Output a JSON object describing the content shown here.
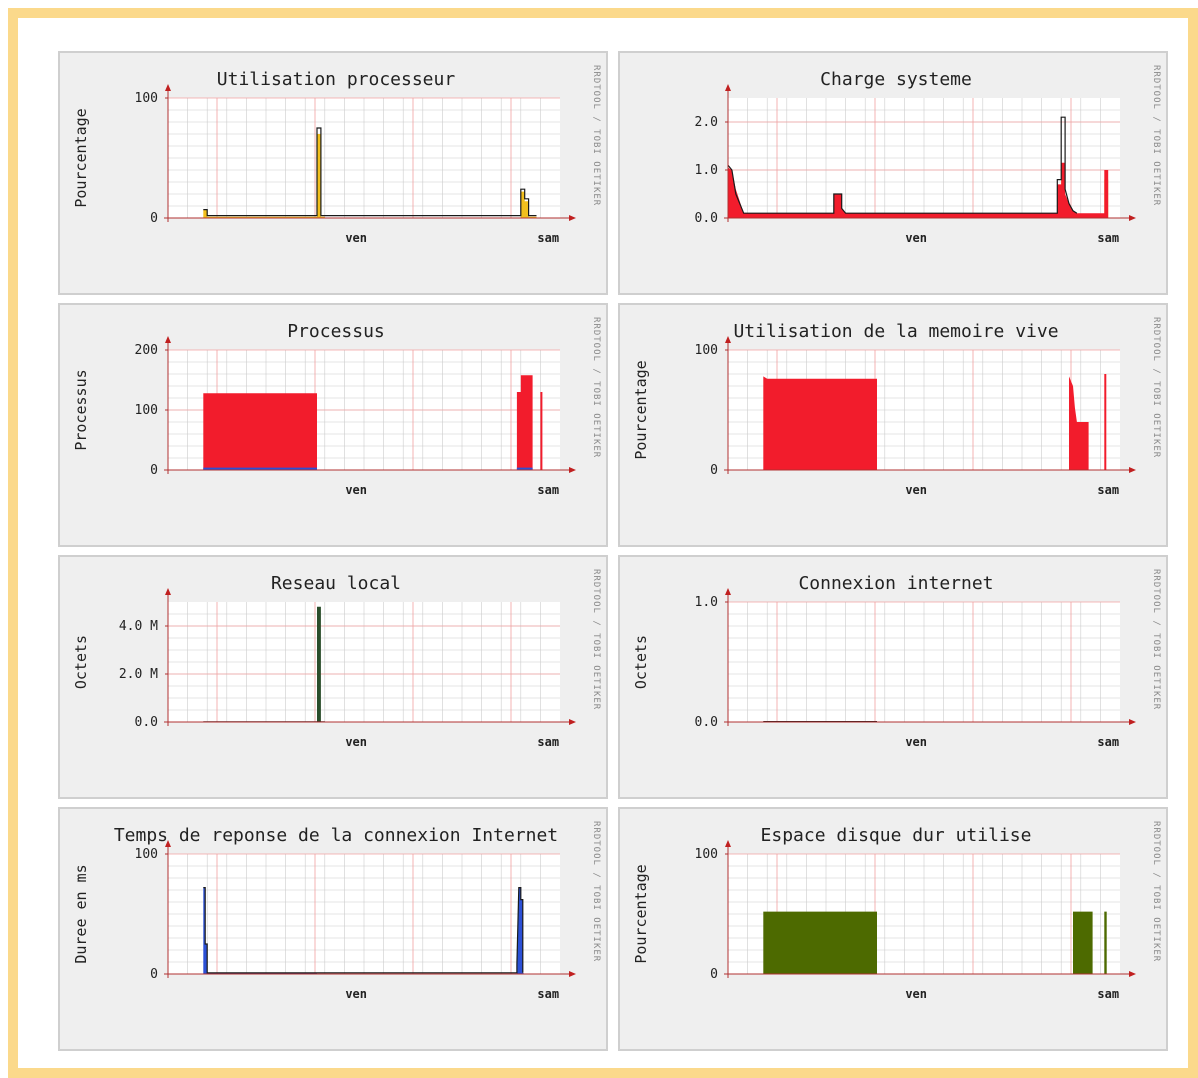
{
  "colors": {
    "background": "#efefef",
    "canvas": "#ffffff",
    "grid": "#cccccc",
    "major_grid": "#f1a0a0",
    "axis": "#b03030",
    "arrow": "#c02020",
    "red": "#f21c2c",
    "yellow": "#f2bf1c",
    "dark_line": "#1a1a1a",
    "blue": "#2c50d6",
    "green": "#4d6a00",
    "dark_green": "#2b4d2b",
    "border": "#fbd98b"
  },
  "watermark": "RRDTOOL / TOBI OETIKER",
  "x_labels": [
    "ven",
    "sam"
  ],
  "chart_data": [
    {
      "id": "cpu",
      "type": "area",
      "title": "Utilisation processeur",
      "ylabel": "Pourcentage",
      "ylim": [
        0,
        100
      ],
      "yticks": [
        0,
        100
      ],
      "ytick_labels": [
        "0",
        "100"
      ],
      "xlim": [
        0,
        100
      ],
      "xticks": [
        {
          "x": 48,
          "label": "ven"
        },
        {
          "x": 97,
          "label": "sam"
        }
      ],
      "series": [
        {
          "color": "yellow",
          "style": "area",
          "points": [
            [
              9,
              0
            ],
            [
              9,
              7
            ],
            [
              10,
              7
            ],
            [
              10,
              1
            ],
            [
              38,
              1
            ],
            [
              38,
              70
            ],
            [
              39,
              70
            ],
            [
              39,
              1
            ],
            [
              40,
              1
            ],
            [
              40,
              0
            ],
            [
              90,
              0
            ],
            [
              90,
              22
            ],
            [
              91,
              22
            ],
            [
              91,
              14
            ],
            [
              92,
              14
            ],
            [
              92,
              1
            ],
            [
              94,
              1
            ],
            [
              94,
              0
            ]
          ]
        },
        {
          "color": "dark_line",
          "style": "line",
          "points": [
            [
              9,
              7
            ],
            [
              10,
              7
            ],
            [
              10,
              2
            ],
            [
              38,
              2
            ],
            [
              38,
              75
            ],
            [
              39,
              75
            ],
            [
              39,
              2
            ],
            [
              40,
              2
            ],
            [
              90,
              2
            ],
            [
              90,
              24
            ],
            [
              91,
              24
            ],
            [
              91,
              16
            ],
            [
              92,
              16
            ],
            [
              92,
              2
            ],
            [
              94,
              2
            ]
          ]
        }
      ]
    },
    {
      "id": "load",
      "type": "area",
      "title": "Charge systeme",
      "ylabel": "",
      "ylim": [
        0,
        2.5
      ],
      "yticks": [
        0,
        1,
        2
      ],
      "ytick_labels": [
        "0.0",
        "1.0",
        "2.0"
      ],
      "xlim": [
        0,
        100
      ],
      "xticks": [
        {
          "x": 48,
          "label": "ven"
        },
        {
          "x": 97,
          "label": "sam"
        }
      ],
      "series": [
        {
          "color": "yellow",
          "style": "area",
          "points": [
            [
              0,
              0
            ],
            [
              0,
              0.9
            ],
            [
              1,
              0.9
            ],
            [
              1,
              0.5
            ],
            [
              2,
              0.3
            ],
            [
              4,
              0.05
            ],
            [
              27,
              0.05
            ],
            [
              27,
              0.4
            ],
            [
              29,
              0.4
            ],
            [
              29,
              0.1
            ],
            [
              30,
              0.05
            ],
            [
              30,
              0
            ],
            [
              84,
              0
            ],
            [
              84,
              0.4
            ],
            [
              85,
              0.4
            ],
            [
              85,
              1.0
            ],
            [
              86,
              1.0
            ],
            [
              86,
              0.4
            ],
            [
              87,
              0.2
            ],
            [
              88,
              0.1
            ],
            [
              89,
              0
            ],
            [
              96,
              0
            ],
            [
              96,
              0.8
            ],
            [
              97,
              0.8
            ],
            [
              97,
              0
            ]
          ]
        },
        {
          "color": "red",
          "style": "area",
          "points": [
            [
              0,
              0.9
            ],
            [
              0,
              1.05
            ],
            [
              1,
              1.0
            ],
            [
              2,
              0.6
            ],
            [
              4,
              0.1
            ],
            [
              27,
              0.1
            ],
            [
              27,
              0.5
            ],
            [
              29,
              0.5
            ],
            [
              29,
              0.2
            ],
            [
              30,
              0.1
            ],
            [
              84,
              0.1
            ],
            [
              84,
              0.7
            ],
            [
              85,
              0.7
            ],
            [
              85,
              1.15
            ],
            [
              86,
              1.15
            ],
            [
              86,
              0.5
            ],
            [
              87,
              0.3
            ],
            [
              88,
              0.15
            ],
            [
              89,
              0.1
            ],
            [
              96,
              0.1
            ],
            [
              96,
              1.0
            ],
            [
              97,
              1.0
            ]
          ]
        },
        {
          "color": "dark_line",
          "style": "line",
          "points": [
            [
              0,
              1.1
            ],
            [
              1,
              1.0
            ],
            [
              2,
              0.5
            ],
            [
              4,
              0.1
            ],
            [
              27,
              0.1
            ],
            [
              27,
              0.5
            ],
            [
              29,
              0.5
            ],
            [
              29,
              0.2
            ],
            [
              30,
              0.1
            ],
            [
              84,
              0.1
            ],
            [
              84,
              0.8
            ],
            [
              85,
              0.8
            ],
            [
              85,
              2.1
            ],
            [
              86,
              2.1
            ],
            [
              86,
              0.6
            ],
            [
              87,
              0.3
            ],
            [
              88,
              0.15
            ],
            [
              89,
              0.1
            ]
          ]
        }
      ]
    },
    {
      "id": "procs",
      "type": "area",
      "title": "Processus",
      "ylabel": "Processus",
      "ylim": [
        0,
        200
      ],
      "yticks": [
        0,
        100,
        200
      ],
      "ytick_labels": [
        "0",
        "100",
        "200"
      ],
      "xlim": [
        0,
        100
      ],
      "xticks": [
        {
          "x": 48,
          "label": "ven"
        },
        {
          "x": 97,
          "label": "sam"
        }
      ],
      "series": [
        {
          "color": "red",
          "style": "area",
          "points": [
            [
              9,
              0
            ],
            [
              9,
              128
            ],
            [
              38,
              128
            ],
            [
              38,
              0
            ],
            [
              89,
              0
            ],
            [
              89,
              130
            ],
            [
              90,
              130
            ],
            [
              90,
              158
            ],
            [
              93,
              158
            ],
            [
              93,
              0
            ],
            [
              95,
              0
            ],
            [
              95,
              130
            ],
            [
              95.5,
              130
            ],
            [
              95.5,
              0
            ]
          ]
        },
        {
          "color": "blue",
          "style": "area",
          "points": [
            [
              9,
              0
            ],
            [
              9,
              4
            ],
            [
              38,
              4
            ],
            [
              38,
              0
            ],
            [
              89,
              0
            ],
            [
              89,
              4
            ],
            [
              93,
              4
            ],
            [
              93,
              0
            ]
          ]
        }
      ]
    },
    {
      "id": "mem",
      "type": "area",
      "title": "Utilisation de la memoire vive",
      "ylabel": "Pourcentage",
      "ylim": [
        0,
        100
      ],
      "yticks": [
        0,
        100
      ],
      "ytick_labels": [
        "0",
        "100"
      ],
      "xlim": [
        0,
        100
      ],
      "xticks": [
        {
          "x": 48,
          "label": "ven"
        },
        {
          "x": 97,
          "label": "sam"
        }
      ],
      "series": [
        {
          "color": "red",
          "style": "area",
          "points": [
            [
              9,
              0
            ],
            [
              9,
              78
            ],
            [
              10,
              76
            ],
            [
              38,
              76
            ],
            [
              38,
              0
            ],
            [
              87,
              0
            ],
            [
              87,
              78
            ],
            [
              88,
              70
            ],
            [
              88.5,
              52
            ],
            [
              89,
              40
            ],
            [
              92,
              40
            ],
            [
              92,
              0
            ],
            [
              96,
              0
            ],
            [
              96,
              80
            ],
            [
              96.5,
              80
            ],
            [
              96.5,
              0
            ]
          ]
        }
      ]
    },
    {
      "id": "lan",
      "type": "area",
      "title": "Reseau local",
      "ylabel": "Octets",
      "ylim": [
        0,
        5
      ],
      "yticks": [
        0,
        2,
        4
      ],
      "ytick_labels": [
        "0.0",
        "2.0 M",
        "4.0 M"
      ],
      "xlim": [
        0,
        100
      ],
      "xticks": [
        {
          "x": 48,
          "label": "ven"
        },
        {
          "x": 97,
          "label": "sam"
        }
      ],
      "series": [
        {
          "color": "dark_green",
          "style": "area",
          "points": [
            [
              38,
              0
            ],
            [
              38,
              4.8
            ],
            [
              39,
              4.8
            ],
            [
              39,
              0
            ]
          ]
        },
        {
          "color": "dark_line",
          "style": "line",
          "points": [
            [
              9,
              0.01
            ],
            [
              40,
              0.01
            ]
          ]
        }
      ]
    },
    {
      "id": "inet",
      "type": "area",
      "title": "Connexion internet",
      "ylabel": "Octets",
      "ylim": [
        0,
        1
      ],
      "yticks": [
        0,
        1
      ],
      "ytick_labels": [
        "0.0",
        "1.0"
      ],
      "xlim": [
        0,
        100
      ],
      "xticks": [
        {
          "x": 48,
          "label": "ven"
        },
        {
          "x": 97,
          "label": "sam"
        }
      ],
      "series": [
        {
          "color": "dark_line",
          "style": "line",
          "points": [
            [
              9,
              0.003
            ],
            [
              38,
              0.003
            ]
          ]
        }
      ]
    },
    {
      "id": "ping",
      "type": "area",
      "title": "Temps de reponse de la connexion Internet",
      "ylabel": "Duree en ms",
      "ylim": [
        0,
        100
      ],
      "yticks": [
        0,
        100
      ],
      "ytick_labels": [
        "0",
        "100"
      ],
      "xlim": [
        0,
        100
      ],
      "xticks": [
        {
          "x": 48,
          "label": "ven"
        },
        {
          "x": 97,
          "label": "sam"
        }
      ],
      "series": [
        {
          "color": "blue",
          "style": "area",
          "points": [
            [
              9,
              0
            ],
            [
              9,
              72
            ],
            [
              9.5,
              72
            ],
            [
              9.5,
              25
            ],
            [
              10,
              25
            ],
            [
              10,
              1
            ],
            [
              38,
              1
            ],
            [
              38,
              0
            ],
            [
              89,
              0
            ],
            [
              89,
              8
            ],
            [
              89.5,
              72
            ],
            [
              90,
              72
            ],
            [
              90,
              62
            ],
            [
              90.5,
              62
            ],
            [
              90.5,
              1
            ],
            [
              91,
              0
            ]
          ]
        },
        {
          "color": "dark_line",
          "style": "line",
          "points": [
            [
              9,
              72
            ],
            [
              9.5,
              72
            ],
            [
              9.5,
              25
            ],
            [
              10,
              25
            ],
            [
              10,
              1
            ],
            [
              38,
              1
            ],
            [
              89,
              1
            ],
            [
              89,
              8
            ],
            [
              89.5,
              72
            ],
            [
              90,
              72
            ],
            [
              90,
              62
            ],
            [
              90.5,
              62
            ],
            [
              90.5,
              1
            ]
          ]
        }
      ]
    },
    {
      "id": "disk",
      "type": "area",
      "title": "Espace disque dur utilise",
      "ylabel": "Pourcentage",
      "ylim": [
        0,
        100
      ],
      "yticks": [
        0,
        100
      ],
      "ytick_labels": [
        "0",
        "100"
      ],
      "xlim": [
        0,
        100
      ],
      "xticks": [
        {
          "x": 48,
          "label": "ven"
        },
        {
          "x": 97,
          "label": "sam"
        }
      ],
      "series": [
        {
          "color": "green",
          "style": "area",
          "points": [
            [
              9,
              0
            ],
            [
              9,
              52
            ],
            [
              38,
              52
            ],
            [
              38,
              0
            ],
            [
              88,
              0
            ],
            [
              88,
              52
            ],
            [
              93,
              52
            ],
            [
              93,
              0
            ],
            [
              96,
              0
            ],
            [
              96,
              52
            ],
            [
              96.6,
              52
            ],
            [
              96.6,
              0
            ]
          ]
        }
      ]
    }
  ]
}
